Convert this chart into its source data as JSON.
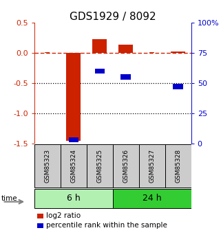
{
  "title": "GDS1929 / 8092",
  "samples": [
    "GSM85323",
    "GSM85324",
    "GSM85325",
    "GSM85326",
    "GSM85327",
    "GSM85328"
  ],
  "groups": [
    {
      "label": "6 h",
      "indices": [
        0,
        1,
        2
      ],
      "color": "#b2f0b2"
    },
    {
      "label": "24 h",
      "indices": [
        3,
        4,
        5
      ],
      "color": "#33cc33"
    }
  ],
  "log2_ratio": [
    0.0,
    -1.45,
    0.22,
    0.13,
    0.0,
    0.02
  ],
  "percentile_rank": [
    null,
    3.0,
    60.0,
    55.0,
    null,
    47.0
  ],
  "ylim_left": [
    -1.5,
    0.5
  ],
  "ylim_right": [
    0,
    100
  ],
  "red_color": "#cc2200",
  "blue_color": "#0000cc",
  "bar_width": 0.55,
  "hlines_dotted": [
    -0.5,
    -1.0
  ],
  "right_ticks": [
    0,
    25,
    50,
    75,
    100
  ],
  "right_tick_labels": [
    "0",
    "25",
    "50",
    "75",
    "100%"
  ],
  "left_ticks": [
    -1.5,
    -1.0,
    -0.5,
    0.0,
    0.5
  ],
  "legend_labels": [
    "log2 ratio",
    "percentile rank within the sample"
  ],
  "sample_bg": "#cccccc",
  "sample_fontsize": 6.5,
  "group_fontsize": 9,
  "title_fontsize": 11,
  "legend_fontsize": 7.5,
  "tick_fontsize": 8
}
